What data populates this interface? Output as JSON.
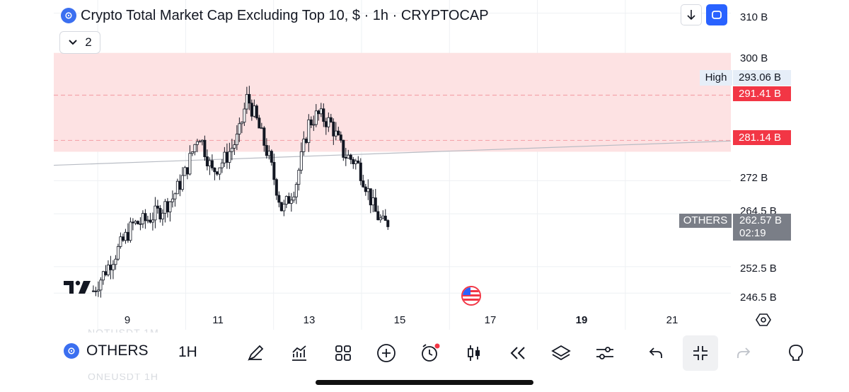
{
  "header": {
    "title": "Crypto Total Market Cap Excluding Top 10, $ · 1h · CRYPTOCAP",
    "collapse_count": "2"
  },
  "colors": {
    "up": "#131722",
    "zone_fill": "#fde2e3",
    "zone_line": "#f4a5ab",
    "accent_red": "#f23645",
    "accent_blue": "#2962ff",
    "neutral_tag": "#7a7e87"
  },
  "y_axis": {
    "labels": [
      "310 B",
      "300 B",
      "272 B",
      "264.5 B",
      "252.5 B",
      "246.5 B"
    ],
    "high_label": "High",
    "high_value": "293.06 B",
    "tag_upper": "291.41 B",
    "tag_lower": "281.14 B",
    "last_symbol": "OTHERS",
    "last_value": "262.57 B",
    "countdown": "02:19"
  },
  "x_axis": {
    "labels": [
      "9",
      "11",
      "13",
      "15",
      "17",
      "19",
      "21"
    ]
  },
  "chart_data": {
    "type": "candlestick",
    "ylim": [
      243,
      313
    ],
    "xlim_days": [
      8.0,
      23.4
    ],
    "resistance_zone": [
      281.14,
      301
    ],
    "zone_lines": [
      291.41,
      281.14
    ],
    "trendline": {
      "from": [
        8.0,
        275.5
      ],
      "to": [
        23.4,
        281.0
      ]
    },
    "x": [
      8.9,
      9.2,
      9.5,
      9.8,
      10.1,
      10.4,
      10.7,
      11.0,
      11.3,
      11.6,
      11.9,
      12.2,
      12.4,
      12.6,
      12.9,
      13.2,
      13.5,
      13.8,
      14.0,
      14.3,
      14.6,
      14.9,
      15.1,
      15.3,
      15.5,
      15.6
    ],
    "y": [
      247,
      252,
      257,
      262,
      263,
      265,
      268,
      274,
      283,
      274,
      277,
      282,
      291,
      286,
      277,
      265,
      271,
      285,
      287,
      285,
      278,
      276,
      271,
      265,
      262,
      262.57
    ]
  },
  "watermark": {
    "rows": [
      "NOTUSDT   1M",
      "ONEUSDT   1H"
    ]
  },
  "toolbar": {
    "symbol": "OTHERS",
    "interval": "1H",
    "icons": [
      "draw-icon",
      "indicators-icon",
      "layouts-icon",
      "add-icon",
      "alert-icon",
      "candles-icon",
      "replay-icon",
      "layers-icon",
      "settings-sliders-icon",
      "undo-icon",
      "compress-icon",
      "redo-icon",
      "bulb-icon"
    ]
  }
}
